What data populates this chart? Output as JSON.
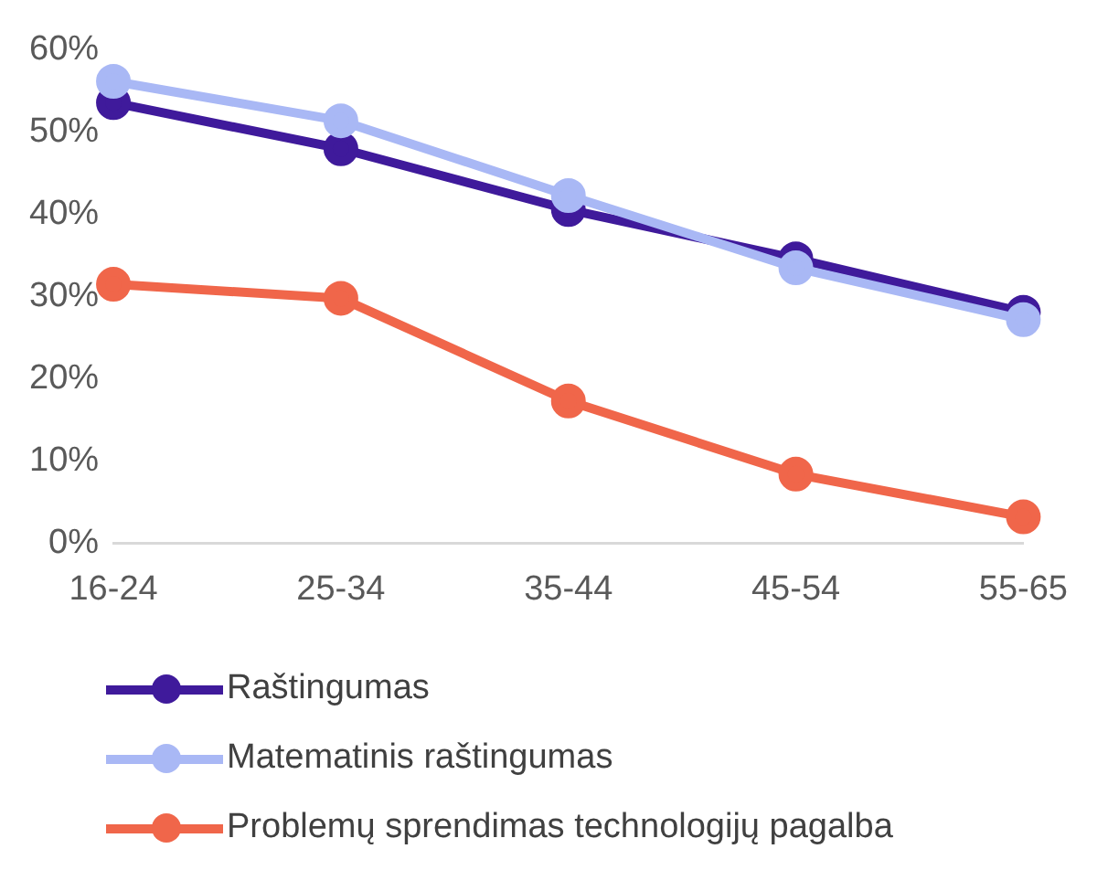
{
  "chart_data": {
    "type": "line",
    "categories": [
      "16-24",
      "25-34",
      "35-44",
      "45-54",
      "55-65"
    ],
    "series": [
      {
        "name": "Raštingumas",
        "color": "#3f1a9b",
        "values": [
          53.6,
          48,
          40.6,
          34.6,
          28.1
        ]
      },
      {
        "name": "Matematinis raštingumas",
        "color": "#a9b8f5",
        "values": [
          56.2,
          51.4,
          42.3,
          33.5,
          27.2
        ]
      },
      {
        "name": "Problemų sprendimas technologijų pagalba",
        "color": "#f0664a",
        "values": [
          31.5,
          29.8,
          17.3,
          8.4,
          3.2
        ]
      }
    ],
    "ylim": [
      0,
      60
    ],
    "yticks": [
      {
        "value": 0,
        "label": "0%"
      },
      {
        "value": 10,
        "label": "10%"
      },
      {
        "value": 20,
        "label": "20%"
      },
      {
        "value": 30,
        "label": "30%"
      },
      {
        "value": 40,
        "label": "40%"
      },
      {
        "value": 50,
        "label": "50%"
      },
      {
        "value": 60,
        "label": "60%"
      }
    ],
    "grid": false,
    "legend": "bottom",
    "marker": "circle",
    "line_style": "solid"
  }
}
